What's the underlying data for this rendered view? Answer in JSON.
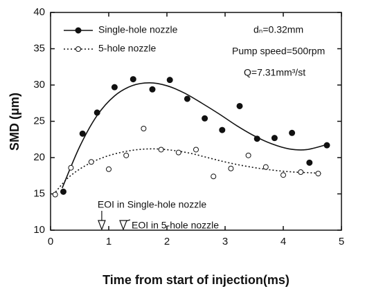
{
  "chart_data": {
    "type": "scatter",
    "xlabel": "Time from start of injection(ms)",
    "ylabel": "SMD (μm)",
    "xlim": [
      0,
      5
    ],
    "ylim": [
      10,
      40
    ],
    "xticks": [
      0,
      1,
      2,
      3,
      4,
      5
    ],
    "yticks": [
      10,
      15,
      20,
      25,
      30,
      35,
      40
    ],
    "legend": "upper left",
    "series": [
      {
        "name": "Single-hole nozzle",
        "color": "#111111",
        "marker": "filled",
        "line": "solid",
        "x": [
          0.22,
          0.55,
          0.8,
          1.1,
          1.42,
          1.75,
          2.05,
          2.35,
          2.65,
          2.95,
          3.25,
          3.55,
          3.85,
          4.15,
          4.45,
          4.75
        ],
        "values": [
          15.3,
          23.3,
          26.2,
          29.7,
          30.8,
          29.4,
          30.7,
          28.1,
          25.4,
          23.8,
          27.1,
          22.6,
          22.7,
          23.4,
          19.3,
          21.7
        ],
        "fit_x": [
          0.2,
          0.5,
          0.8,
          1.1,
          1.4,
          1.7,
          2.0,
          2.3,
          2.6,
          2.9,
          3.2,
          3.5,
          3.8,
          4.1,
          4.4,
          4.75
        ],
        "fit": [
          15.8,
          21.5,
          25.8,
          28.5,
          29.9,
          30.3,
          29.9,
          28.9,
          27.5,
          26.0,
          24.4,
          23.0,
          21.9,
          21.2,
          21.1,
          21.8
        ]
      },
      {
        "name": "5-hole nozzle",
        "color": "#111111",
        "marker": "open",
        "line": "dotted",
        "x": [
          0.08,
          0.35,
          0.7,
          1.0,
          1.3,
          1.6,
          1.9,
          2.2,
          2.5,
          2.8,
          3.1,
          3.4,
          3.7,
          4.0,
          4.3,
          4.6
        ],
        "values": [
          14.9,
          18.6,
          19.4,
          18.4,
          20.3,
          24.0,
          21.1,
          20.7,
          21.1,
          17.4,
          18.5,
          20.3,
          18.7,
          17.6,
          18.0,
          17.8
        ],
        "fit_x": [
          0.05,
          0.3,
          0.6,
          0.9,
          1.2,
          1.5,
          1.8,
          2.1,
          2.4,
          2.7,
          3.0,
          3.3,
          3.6,
          3.9,
          4.2,
          4.5,
          4.65
        ],
        "fit": [
          14.9,
          17.2,
          18.9,
          20.0,
          20.7,
          21.1,
          21.2,
          21.0,
          20.6,
          20.0,
          19.4,
          18.9,
          18.5,
          18.2,
          18.0,
          17.9,
          17.8
        ]
      }
    ],
    "annotations": [
      "dₙ=0.32mm",
      "Pump speed=500rpm",
      "Q=7.31mm³/st"
    ],
    "eoi": [
      {
        "text": "EOI in Single-hole nozzle",
        "x": 0.88
      },
      {
        "text": "EOI in 5-hole nozzle",
        "x": 1.25
      }
    ]
  }
}
